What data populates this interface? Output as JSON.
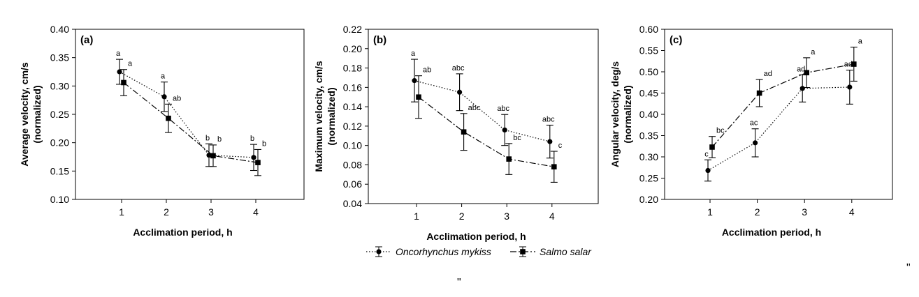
{
  "chart_data": [
    {
      "type": "line",
      "panel_label": "(a)",
      "ylabel": "Average velocity, cm/s\n(normalized)",
      "xlabel": "Acclimation period, h",
      "x": [
        1,
        2,
        3,
        4
      ],
      "xticks": [
        "1",
        "2",
        "3",
        "4"
      ],
      "ylim": [
        0.1,
        0.4
      ],
      "yticks": [
        "0.10",
        "0.15",
        "0.20",
        "0.25",
        "0.30",
        "0.35",
        "0.40"
      ],
      "grid": false,
      "series": [
        {
          "name": "Oncorhynchus mykiss",
          "marker": "circle",
          "line": "dotted",
          "values": [
            0.325,
            0.281,
            0.178,
            0.174
          ],
          "errors": [
            0.022,
            0.026,
            0.02,
            0.023
          ],
          "labels": [
            "a",
            "a",
            "b",
            "b"
          ]
        },
        {
          "name": "Salmo salar",
          "marker": "square",
          "line": "dashdot",
          "values": [
            0.306,
            0.243,
            0.177,
            0.165
          ],
          "errors": [
            0.023,
            0.025,
            0.019,
            0.023
          ],
          "labels": [
            "a",
            "ab",
            "b",
            "b"
          ]
        }
      ]
    },
    {
      "type": "line",
      "panel_label": "(b)",
      "ylabel": "Maximum velocity, cm/s\n(normalized)",
      "xlabel": "Acclimation period, h",
      "x": [
        1,
        2,
        3,
        4
      ],
      "xticks": [
        "1",
        "2",
        "3",
        "4"
      ],
      "ylim": [
        0.04,
        0.22
      ],
      "yticks": [
        "0.04",
        "0.06",
        "0.08",
        "0.10",
        "0.12",
        "0.14",
        "0.16",
        "0.18",
        "0.20",
        "0.22"
      ],
      "grid": false,
      "series": [
        {
          "name": "Oncorhynchus mykiss",
          "marker": "circle",
          "line": "dotted",
          "values": [
            0.167,
            0.155,
            0.116,
            0.104
          ],
          "errors": [
            0.022,
            0.019,
            0.016,
            0.017
          ],
          "labels": [
            "a",
            "abc",
            "abc",
            "abc"
          ]
        },
        {
          "name": "Salmo salar",
          "marker": "square",
          "line": "dashdot",
          "values": [
            0.15,
            0.114,
            0.086,
            0.078
          ],
          "errors": [
            0.022,
            0.019,
            0.016,
            0.016
          ],
          "labels": [
            "ab",
            "abc",
            "bc",
            "c"
          ]
        }
      ]
    },
    {
      "type": "line",
      "panel_label": "(c)",
      "ylabel": "Angular velocity, deg/s\n(normalized)",
      "xlabel": "Acclimation period, h",
      "x": [
        1,
        2,
        3,
        4
      ],
      "xticks": [
        "1",
        "2",
        "3",
        "4"
      ],
      "ylim": [
        0.2,
        0.6
      ],
      "yticks": [
        "0.20",
        "0.25",
        "0.30",
        "0.35",
        "0.40",
        "0.45",
        "0.50",
        "0.55",
        "0.60"
      ],
      "grid": false,
      "series": [
        {
          "name": "Oncorhynchus mykiss",
          "marker": "circle",
          "line": "dotted",
          "values": [
            0.268,
            0.333,
            0.461,
            0.464
          ],
          "errors": [
            0.025,
            0.033,
            0.032,
            0.04
          ],
          "labels": [
            "c",
            "ac",
            "ad",
            "ad"
          ]
        },
        {
          "name": "Salmo salar",
          "marker": "square",
          "line": "dashdot",
          "values": [
            0.323,
            0.45,
            0.498,
            0.518
          ],
          "errors": [
            0.025,
            0.032,
            0.035,
            0.04
          ],
          "labels": [
            "bc",
            "ad",
            "a",
            "a"
          ]
        }
      ]
    }
  ],
  "legend": [
    {
      "name": "Oncorhynchus mykiss",
      "marker": "circle"
    },
    {
      "name": "Salmo salar",
      "marker": "square"
    }
  ],
  "stray_marks": [
    "\"",
    "\""
  ]
}
